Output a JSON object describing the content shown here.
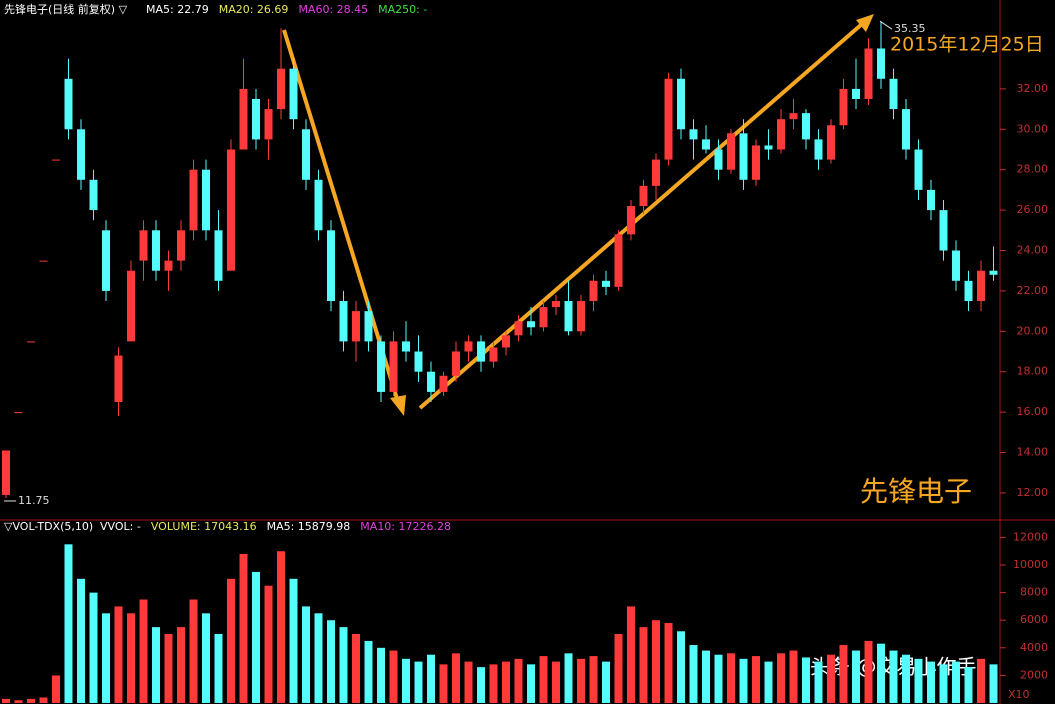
{
  "chart_data": [
    {
      "type": "candlestick",
      "title": "先锋电子(日线 前复权) ▽",
      "indicators": [
        {
          "name": "MA5: 22.79",
          "color": "#ffffff"
        },
        {
          "name": "MA20: 26.69",
          "color": "#e8e85a"
        },
        {
          "name": "MA60: 28.45",
          "color": "#e040e0"
        },
        {
          "name": "MA250: -",
          "color": "#40e040"
        }
      ],
      "open": [
        11.9,
        16.0,
        19.5,
        23.5,
        28.5,
        32.5,
        30,
        27.5,
        25,
        16.5,
        19.5,
        23.5,
        25,
        23,
        23.5,
        25,
        28,
        25,
        23,
        29,
        31.5,
        29.5,
        31,
        33,
        30,
        27.5,
        25,
        21.5,
        19.5,
        21,
        19.5,
        17,
        19.5,
        19,
        18,
        17,
        17.8,
        19,
        19.5,
        18.5,
        19.2,
        19.8,
        20.5,
        20.2,
        21.2,
        21.5,
        20,
        21.5,
        22.5,
        22.2,
        24.8,
        26.2,
        27.2,
        28.5,
        32.5,
        30,
        29.5,
        29,
        28,
        29.8,
        27.5,
        29.2,
        29,
        30.5,
        30.8,
        29.5,
        28.5,
        30.2,
        32,
        31.5,
        34,
        32.5,
        31,
        29,
        27,
        26,
        24,
        22.5,
        21.5,
        23
      ],
      "high": [
        14.1,
        16.0,
        19.5,
        23.5,
        28.5,
        33.5,
        30.5,
        28,
        25.5,
        19.2,
        23.5,
        25.5,
        25.5,
        24,
        25.5,
        28.5,
        28.5,
        26,
        29.5,
        33.5,
        32,
        31.5,
        35,
        33.5,
        30.5,
        28,
        25.5,
        22,
        21.5,
        21.5,
        19.8,
        20,
        20.5,
        19.8,
        18.5,
        18,
        19.5,
        19.8,
        19.8,
        19.5,
        20,
        20.8,
        21.2,
        21.5,
        21.8,
        22.5,
        21.8,
        22.8,
        23,
        25,
        26.5,
        27.5,
        28.8,
        32.8,
        33,
        30.5,
        30.2,
        29.5,
        30,
        30.5,
        29.5,
        30,
        31,
        31.5,
        31,
        30,
        30.5,
        32.5,
        33.5,
        34.5,
        35.35,
        33,
        31.5,
        29.5,
        27.5,
        26.5,
        24.5,
        23,
        23.5,
        24.2
      ],
      "low": [
        11.75,
        16.0,
        19.5,
        23.5,
        28.5,
        29.5,
        27,
        25.5,
        21.5,
        15.8,
        19.5,
        22.5,
        22.5,
        22,
        23,
        24.5,
        24.5,
        22,
        23,
        29,
        29,
        28.5,
        30.5,
        30,
        27,
        24.5,
        21,
        19,
        18.5,
        19,
        16.5,
        16.8,
        18.5,
        17.5,
        16.5,
        16.8,
        17.5,
        18.5,
        18,
        18.2,
        18.8,
        19.5,
        19.8,
        20,
        20.8,
        19.8,
        19.8,
        21,
        21.8,
        22,
        24.5,
        25.8,
        26.5,
        28.2,
        29.5,
        28.5,
        28.8,
        27.5,
        27.8,
        27,
        27.2,
        28.5,
        28.8,
        30,
        29,
        28,
        28.3,
        30,
        31,
        31.2,
        32,
        30.5,
        28.5,
        26.5,
        25.5,
        23.5,
        22,
        21,
        21,
        22.5
      ],
      "close": [
        14.1,
        16.0,
        19.5,
        23.5,
        28.5,
        30,
        27.5,
        26,
        22,
        18.8,
        23,
        25,
        23,
        23.5,
        25,
        28,
        25,
        22.5,
        29,
        32,
        29.5,
        31,
        33,
        30.5,
        27.5,
        25,
        21.5,
        19.5,
        21,
        19.5,
        17,
        19.5,
        19,
        18,
        17,
        17.8,
        19,
        19.5,
        18.5,
        19.2,
        19.8,
        20.5,
        20.2,
        21.2,
        21.5,
        20,
        21.5,
        22.5,
        22.2,
        24.8,
        26.2,
        27.2,
        28.5,
        32.5,
        30,
        29.5,
        29,
        28,
        29.8,
        27.5,
        29.2,
        29,
        30.5,
        30.8,
        29.5,
        28.5,
        30.2,
        32,
        31.5,
        34,
        32.5,
        31,
        29,
        27,
        26,
        24,
        22.5,
        21.5,
        23,
        22.8
      ],
      "up_color": "#ff3a3a",
      "down_color": "#54fcfc",
      "ylim": [
        10.66,
        36.4
      ],
      "yticks": [
        {
          "value": 12,
          "label": "12.00"
        },
        {
          "value": 14,
          "label": "14.00"
        },
        {
          "value": 16,
          "label": "16.00"
        },
        {
          "value": 18,
          "label": "18.00"
        },
        {
          "value": 20,
          "label": "20.00"
        },
        {
          "value": 22,
          "label": "22.00"
        },
        {
          "value": 24,
          "label": "24.00"
        },
        {
          "value": 26,
          "label": "26.00"
        },
        {
          "value": 28,
          "label": "28.00"
        },
        {
          "value": 30,
          "label": "30.00"
        },
        {
          "value": 32,
          "label": "32.00"
        }
      ],
      "max_label": 35.35,
      "min_label": 11.75,
      "annotations": [
        "2015年12月25日",
        "先锋电子"
      ]
    },
    {
      "type": "bar",
      "title": "▽VOL-TDX(5,10)",
      "indicators": [
        {
          "name": "VVOL: -",
          "color": "#ffffff"
        },
        {
          "name": "VOLUME: 17043.16",
          "color": "#e8e85a"
        },
        {
          "name": "MA5: 15879.98",
          "color": "#ffffff"
        },
        {
          "name": "MA10: 17226.28",
          "color": "#e040e0"
        }
      ],
      "values": [
        300,
        200,
        300,
        400,
        2000,
        11500,
        9000,
        8000,
        6500,
        7000,
        6500,
        7500,
        5500,
        5000,
        5500,
        7500,
        6500,
        5000,
        9000,
        10800,
        9500,
        8500,
        11000,
        9000,
        7000,
        6500,
        6000,
        5500,
        5000,
        4500,
        4000,
        3800,
        3200,
        3000,
        3500,
        2800,
        3600,
        3000,
        2600,
        2800,
        3000,
        3200,
        2800,
        3400,
        3000,
        3600,
        3200,
        3400,
        3000,
        5000,
        7000,
        5500,
        6000,
        5800,
        5200,
        4200,
        3800,
        3500,
        3600,
        3200,
        3400,
        3000,
        3600,
        3800,
        3300,
        3000,
        3500,
        4200,
        3800,
        4500,
        4300,
        3800,
        3500,
        3200,
        3000,
        2800,
        3000,
        2600,
        3200,
        2800
      ],
      "ylim": [
        0,
        12900
      ],
      "yticks": [
        2000,
        4000,
        6000,
        8000,
        10000,
        12000
      ],
      "unit": "X10"
    }
  ],
  "watermark": "头条 @交易小作手"
}
